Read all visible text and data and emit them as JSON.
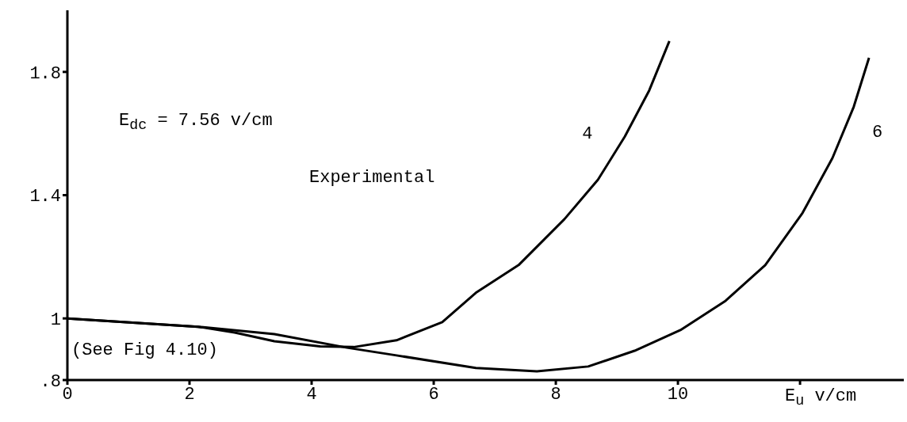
{
  "chart_data": {
    "type": "line",
    "xlabel": "E$_{u}$ v/cm",
    "annotations": [
      "E$_{dc}$ = 7.56 v/cm",
      "Experimental",
      "(See Fig 4.10)"
    ],
    "series": [
      {
        "name": "4",
        "color": "#000000",
        "x": [
          0,
          2.14,
          2.74,
          3.39,
          4.14,
          4.69,
          5.39,
          6.14,
          6.69,
          7.39,
          8.14,
          8.69,
          9.13,
          9.53,
          9.86
        ],
        "values": [
          1.0,
          0.973,
          0.954,
          0.926,
          0.909,
          0.907,
          0.929,
          0.988,
          1.083,
          1.173,
          1.322,
          1.45,
          1.59,
          1.74,
          1.9
        ]
      },
      {
        "name": "6",
        "color": "#000000",
        "x": [
          0,
          2.14,
          3.39,
          4.58,
          5.39,
          6.69,
          7.69,
          8.53,
          9.29,
          10.04,
          10.78,
          11.43,
          12.04,
          12.53,
          12.88,
          13.13
        ],
        "values": [
          1.0,
          0.973,
          0.949,
          0.905,
          0.88,
          0.839,
          0.828,
          0.844,
          0.895,
          0.962,
          1.057,
          1.173,
          1.342,
          1.52,
          1.687,
          1.846
        ]
      }
    ],
    "xlim": [
      0,
      13.7
    ],
    "xticks": [
      0,
      2,
      4,
      6,
      8,
      10,
      {
        "value": 12,
        "label": null
      }
    ],
    "ylim": [
      0.8,
      2.0
    ],
    "yticks": [
      {
        "value": 0.8,
        "label": ".8"
      },
      1,
      1.4,
      1.8
    ],
    "grid": false,
    "legend": false,
    "marker": "none",
    "line_style": "solid"
  }
}
